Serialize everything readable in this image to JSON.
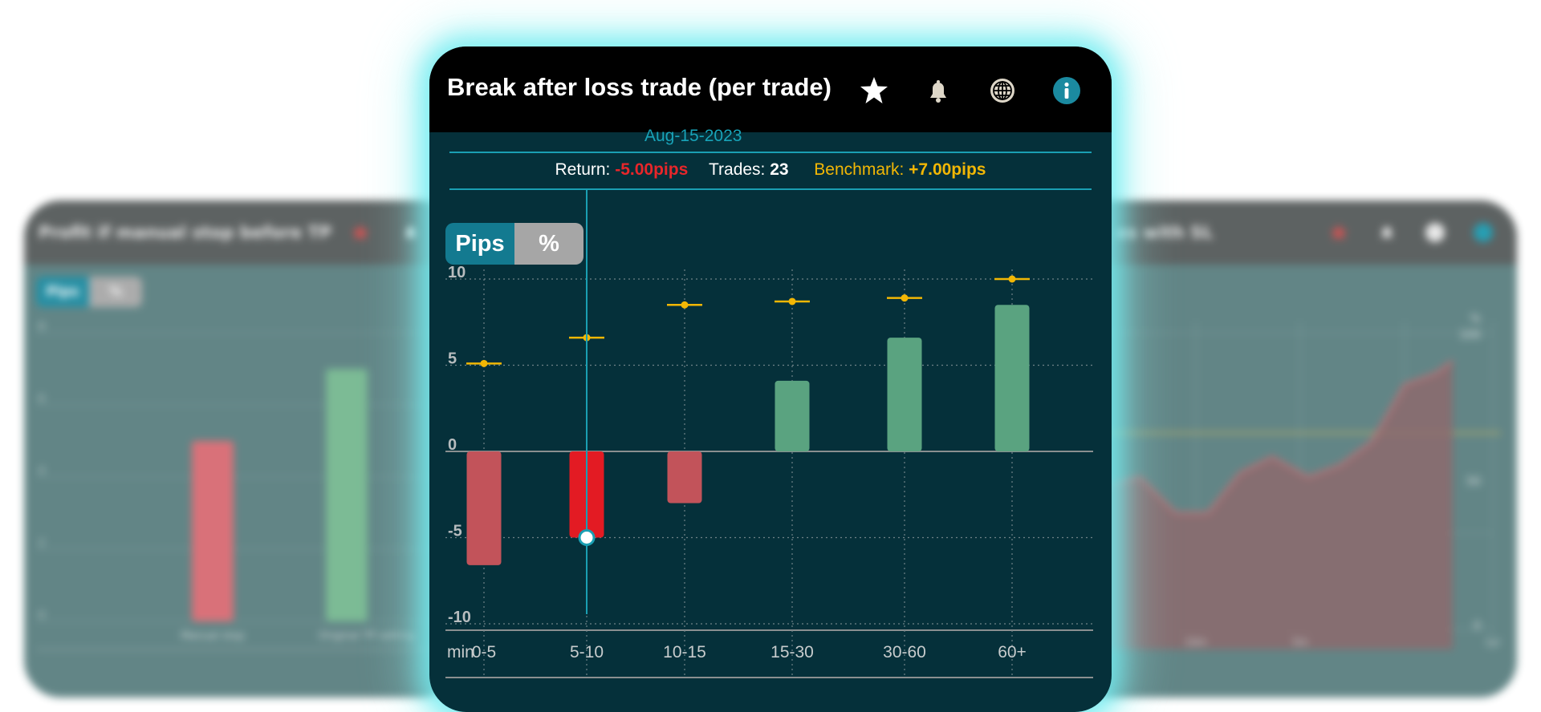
{
  "left_card": {
    "title": "Profit if manual stop before TP",
    "toggle": {
      "pips": "Pips",
      "percent": "%"
    },
    "y_ticks": [
      "8",
      "6",
      "4",
      "2",
      "0"
    ],
    "categories": [
      "Manual stop",
      "Original TP setting"
    ],
    "values": [
      5,
      7
    ]
  },
  "right_card": {
    "title": "es with SL",
    "y_right_ticks": [
      "%",
      "100",
      "50",
      "0"
    ],
    "x_ticks": [
      "5m",
      "10m",
      "5m",
      "1yr"
    ]
  },
  "main": {
    "title": "Break after loss trade (per trade)",
    "icons": [
      "star-icon",
      "bell-icon",
      "globe-icon",
      "info-icon"
    ],
    "date": "Aug-15-2023",
    "return_label": "Return:",
    "return_value": "-5.00pips",
    "trades_label": "Trades:",
    "trades_value": "23",
    "benchmark_label": "Benchmark:",
    "benchmark_value": "+7.00pips",
    "toggle": {
      "pips": "Pips",
      "percent": "%",
      "selected": "Pips"
    },
    "x_axis_unit": "min",
    "colors": {
      "accent": "#1a9fb3",
      "negative": "#c2535a",
      "negative_selected": "#e31b23",
      "positive": "#5aa380",
      "benchmark": "#f2b705",
      "return_text": "#e8262a"
    }
  },
  "chart_data": {
    "type": "bar",
    "title": "Break after loss trade (per trade)",
    "xlabel": "min",
    "ylabel": "",
    "categories": [
      "0-5",
      "5-10",
      "10-15",
      "15-30",
      "30-60",
      "60+"
    ],
    "series": [
      {
        "values": [
          -6.6,
          -5.0,
          -3.0,
          4.1,
          6.6,
          8.5
        ]
      },
      {
        "values": [
          5.1,
          6.6,
          8.5,
          8.7,
          8.9,
          10.0
        ]
      }
    ],
    "selected_index": 1,
    "ylim": [
      -10,
      10
    ],
    "yticks": [
      10,
      5,
      0,
      -5,
      -10
    ],
    "grid": true
  }
}
